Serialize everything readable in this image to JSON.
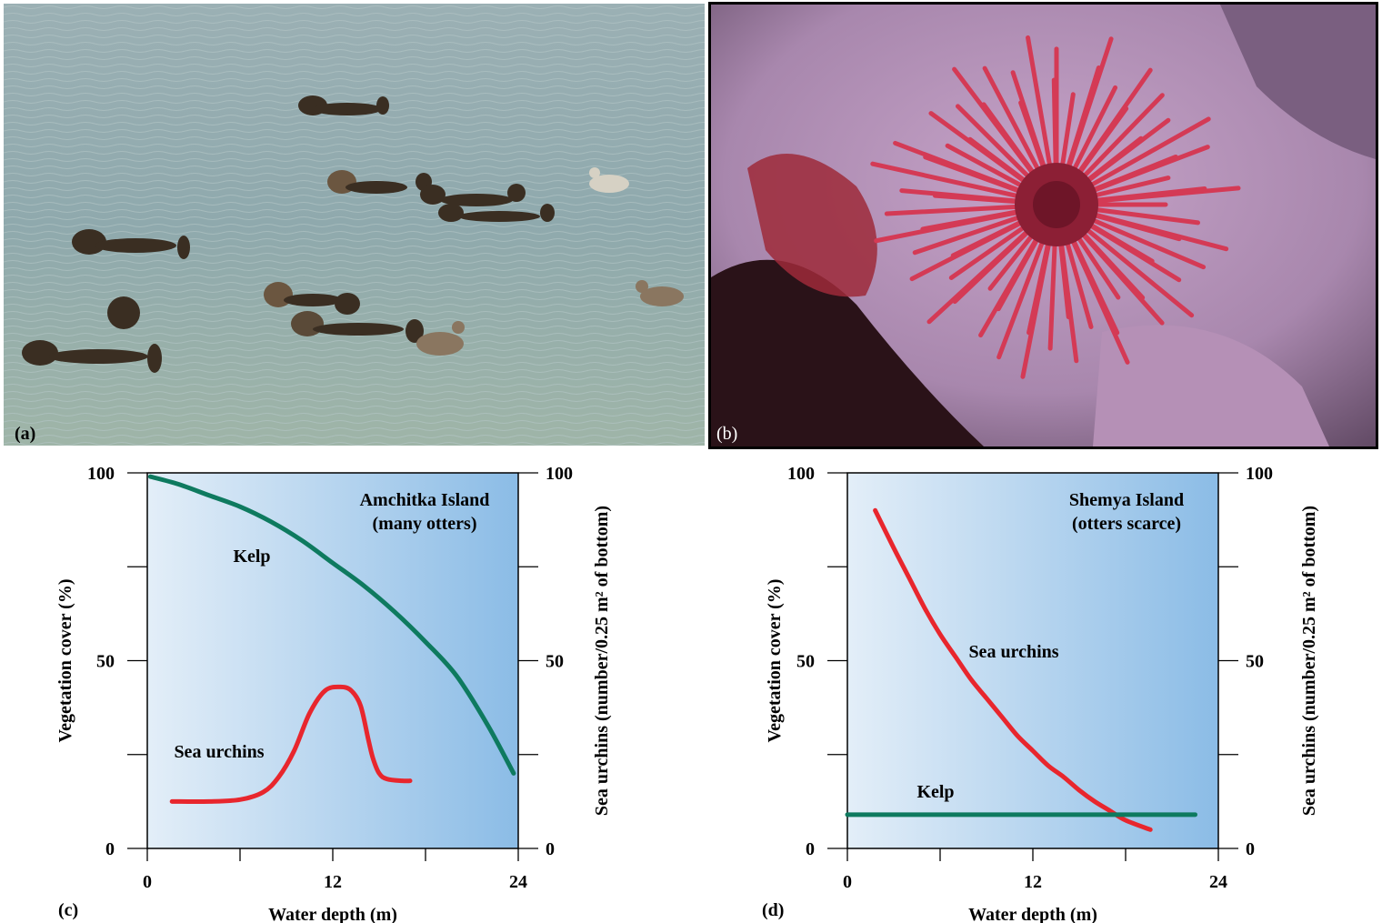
{
  "panels": {
    "a": {
      "letter": "(a)"
    },
    "b": {
      "letter": "(b)"
    },
    "c": {
      "letter": "(c)"
    },
    "d": {
      "letter": "(d)"
    }
  },
  "chart_data": [
    {
      "type": "line",
      "panel": "(c)",
      "title": "Amchitka Island",
      "subtitle": "(many otters)",
      "xlabel": "Water depth (m)",
      "ylabel_left": "Vegetation cover (%)",
      "ylabel_right": "Sea urchins (number/0.25 m² of bottom)",
      "xlim": [
        0,
        24
      ],
      "ylim": [
        0,
        100
      ],
      "x_ticks": [
        "0",
        "12",
        "24"
      ],
      "y_ticks": [
        "0",
        "50",
        "100"
      ],
      "series": [
        {
          "name": "Kelp",
          "color": "#0e7a5f",
          "axis": "left",
          "x": [
            0.2,
            2,
            4,
            6,
            8,
            10,
            12,
            14,
            16,
            18,
            20,
            22,
            23.7
          ],
          "y": [
            99,
            97,
            94,
            91,
            87,
            82,
            76,
            70,
            63,
            55,
            46,
            33,
            20
          ]
        },
        {
          "name": "Sea urchins",
          "color": "#e8262d",
          "axis": "right",
          "x": [
            1.6,
            4,
            6,
            7.5,
            8.5,
            9.5,
            10.5,
            11.5,
            12.5,
            13.2,
            13.8,
            14.3,
            14.6,
            15,
            15.5,
            16.5,
            17
          ],
          "y": [
            12.5,
            12.5,
            13,
            15,
            19,
            26,
            36,
            42,
            43,
            42,
            38,
            29,
            24,
            20,
            18.5,
            18,
            18
          ]
        }
      ],
      "background_gradient": [
        "#e3eef8",
        "#8bbce6"
      ]
    },
    {
      "type": "line",
      "panel": "(d)",
      "title": "Shemya Island",
      "subtitle": "(otters scarce)",
      "xlabel": "Water depth (m)",
      "ylabel_left": "Vegetation cover (%)",
      "ylabel_right": "Sea urchins (number/0.25 m² of bottom)",
      "xlim": [
        0,
        24
      ],
      "ylim": [
        0,
        100
      ],
      "x_ticks": [
        "0",
        "12",
        "24"
      ],
      "y_ticks": [
        "0",
        "50",
        "100"
      ],
      "series": [
        {
          "name": "Sea urchins",
          "color": "#e8262d",
          "axis": "right",
          "x": [
            1.8,
            3,
            4,
            5,
            6,
            7,
            8,
            9,
            10,
            11,
            12,
            13,
            14,
            15,
            16,
            17,
            18,
            19.6
          ],
          "y": [
            90,
            80,
            72,
            64,
            57,
            51,
            45,
            40,
            35,
            30,
            26,
            22,
            19,
            15.5,
            12.5,
            10,
            7.5,
            5
          ]
        },
        {
          "name": "Kelp",
          "color": "#0e7a5f",
          "axis": "left",
          "x": [
            0,
            22.5
          ],
          "y": [
            9,
            9
          ]
        }
      ],
      "background_gradient": [
        "#e3eef8",
        "#8bbce6"
      ]
    }
  ]
}
